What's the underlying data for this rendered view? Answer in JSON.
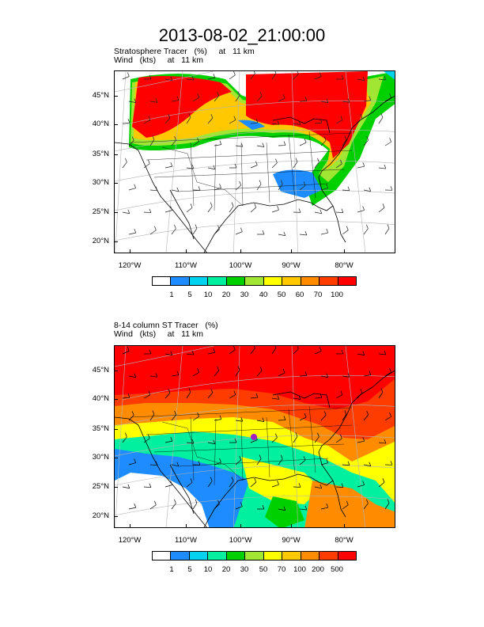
{
  "title": "2013-08-02_21:00:00",
  "panels": [
    {
      "subtitle_line1": "Stratosphere Tracer   (%)     at   11 km",
      "subtitle_line2": "Wind   (kts)     at   11 km",
      "colorbar_labels": [
        "1",
        "5",
        "10",
        "20",
        "30",
        "40",
        "50",
        "60",
        "70",
        "100"
      ]
    },
    {
      "subtitle_line1": "8-14 column ST Tracer   (%)",
      "subtitle_line2": "Wind   (kts)     at   11 km",
      "colorbar_labels": [
        "1",
        "5",
        "10",
        "20",
        "30",
        "50",
        "70",
        "100",
        "200",
        "500"
      ]
    }
  ],
  "lat_labels": [
    "45°N",
    "40°N",
    "35°N",
    "30°N",
    "25°N",
    "20°N"
  ],
  "lon_labels": [
    "120°W",
    "110°W",
    "100°W",
    "90°W",
    "80°W"
  ],
  "colors": [
    "#ffffff",
    "#1e8cff",
    "#00d2f0",
    "#00f0a0",
    "#00d000",
    "#a0e632",
    "#ffff00",
    "#ffc800",
    "#ff8c00",
    "#ff3c00",
    "#ff0000"
  ]
}
